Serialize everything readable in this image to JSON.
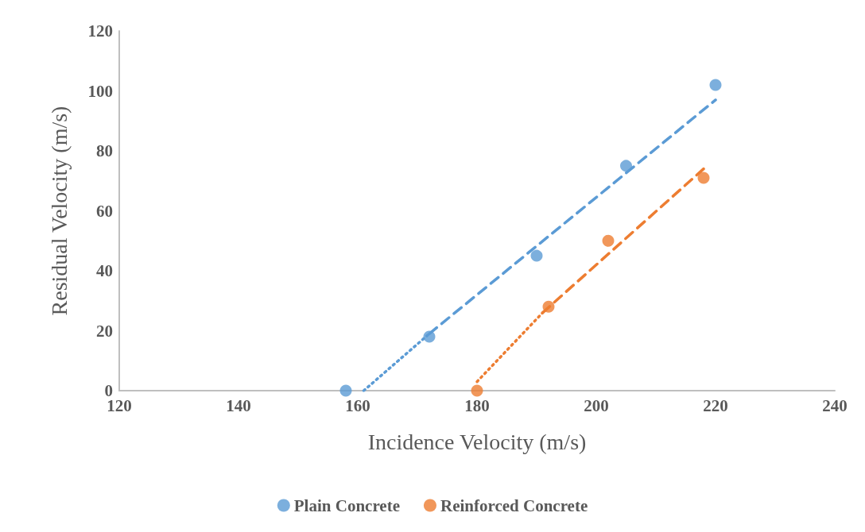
{
  "chart_data": {
    "type": "scatter",
    "xlabel": "Incidence Velocity (m/s)",
    "ylabel": "Residual Velocity (m/s)",
    "xlim": [
      120,
      240
    ],
    "xticks": [
      120,
      140,
      160,
      180,
      200,
      220,
      240
    ],
    "ylim": [
      0,
      120
    ],
    "yticks": [
      0,
      20,
      40,
      60,
      80,
      100,
      120
    ],
    "grid": false,
    "legend": "bottom",
    "marker": "circle",
    "series": [
      {
        "name": "Plain Concrete",
        "color": "#5b9bd5",
        "x": [
          158,
          172,
          190,
          205,
          220
        ],
        "values": [
          0,
          18,
          45,
          75,
          102
        ]
      },
      {
        "name": "Reinforced Concrete",
        "color": "#ed7d31",
        "x": [
          180,
          192,
          202,
          218
        ],
        "values": [
          0,
          28,
          50,
          71
        ]
      },
      {
        "type": "line",
        "color": "#5b9bd5",
        "line_style": "dotted",
        "marker": "none",
        "x": [
          161,
          172
        ],
        "values": [
          0,
          19
        ]
      },
      {
        "type": "line",
        "color": "#5b9bd5",
        "line_style": "dashed",
        "marker": "none",
        "x": [
          172,
          220
        ],
        "values": [
          19,
          97
        ]
      },
      {
        "type": "line",
        "color": "#ed7d31",
        "line_style": "dotted",
        "marker": "none",
        "x": [
          180,
          191
        ],
        "values": [
          3,
          26
        ]
      },
      {
        "type": "line",
        "color": "#ed7d31",
        "line_style": "dashed",
        "marker": "none",
        "x": [
          191,
          218
        ],
        "values": [
          26,
          74
        ]
      }
    ]
  }
}
